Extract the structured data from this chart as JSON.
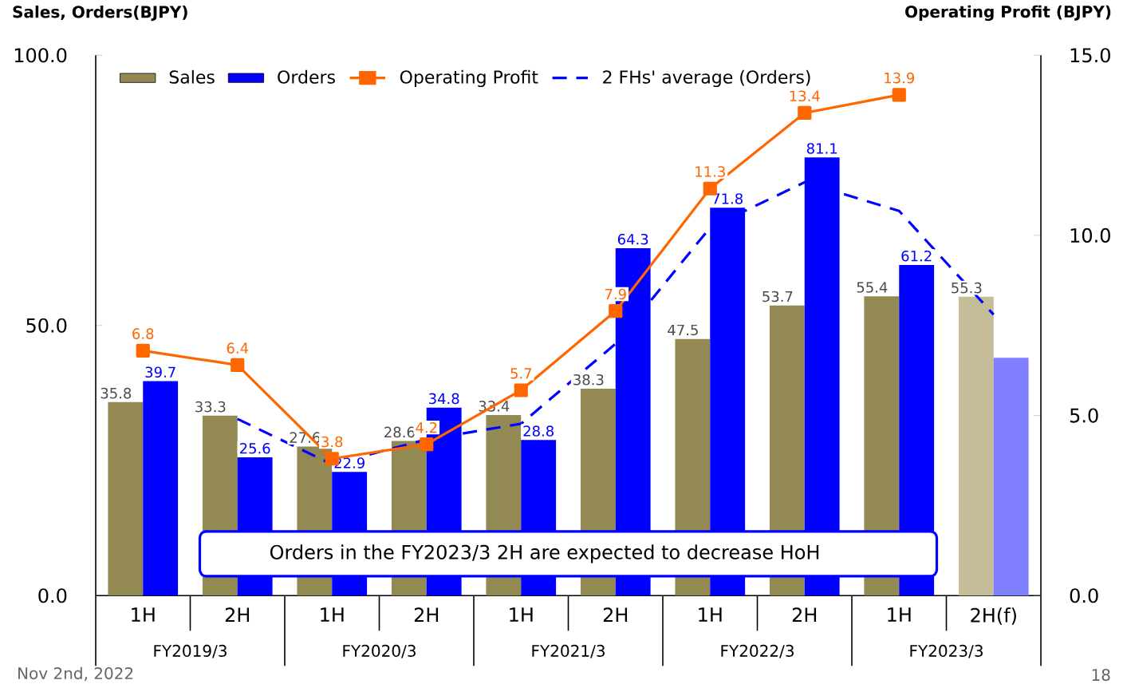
{
  "chart_data": {
    "type": "bar",
    "ylabel": "Sales, Orders(BJPY)",
    "y2label": "Operating Profit (BJPY)",
    "categories": [
      "1H",
      "2H",
      "1H",
      "2H",
      "1H",
      "2H",
      "1H",
      "2H",
      "1H",
      "2H(f)"
    ],
    "ylim": [
      0,
      100
    ],
    "yticks": [
      {
        "value": 0,
        "label": "0.0"
      },
      {
        "value": 50,
        "label": "50.0"
      },
      {
        "value": 100,
        "label": "100.0"
      }
    ],
    "y2lim": [
      0,
      15
    ],
    "y2ticks": [
      {
        "value": 0,
        "label": "0.0"
      },
      {
        "value": 5,
        "label": "5.0"
      },
      {
        "value": 10,
        "label": "10.0"
      },
      {
        "value": 15,
        "label": "15.0"
      }
    ],
    "legend": "top left",
    "series": [
      {
        "name": "Sales",
        "type": "bar",
        "color": "#938953",
        "colors": [
          "#938953",
          "#938953",
          "#938953",
          "#938953",
          "#938953",
          "#938953",
          "#938953",
          "#938953",
          "#938953",
          "#c4bd97"
        ],
        "values": [
          35.8,
          33.3,
          27.6,
          28.6,
          33.4,
          38.3,
          47.5,
          53.7,
          55.4,
          55.3
        ],
        "value_labels": [
          "35.8",
          "33.3",
          "27.6",
          "28.6",
          "33.4",
          "38.3",
          "47.5",
          "53.7",
          "55.4",
          "55.3"
        ]
      },
      {
        "name": "Orders",
        "type": "bar",
        "color": "#0000ff",
        "colors": [
          "#0000ff",
          "#0000ff",
          "#0000ff",
          "#0000ff",
          "#0000ff",
          "#0000ff",
          "#0000ff",
          "#0000ff",
          "#0000ff",
          "#7f7fff"
        ],
        "values": [
          39.7,
          25.6,
          22.9,
          34.8,
          28.8,
          64.3,
          71.8,
          81.1,
          61.2,
          44
        ],
        "value_labels": [
          "39.7",
          "25.6",
          "22.9",
          "34.8",
          "28.8",
          "64.3",
          "71.8",
          "81.1",
          "61.2",
          null
        ]
      },
      {
        "name": "Operating Profit",
        "type": "line",
        "axis": "y2",
        "color": "#ff6600",
        "marker": "square",
        "line_style": "solid",
        "values": [
          6.8,
          6.4,
          3.8,
          4.2,
          5.7,
          7.9,
          11.3,
          13.4,
          13.9,
          null
        ],
        "value_labels": [
          "6.8",
          "6.4",
          "3.8",
          "4.2",
          "5.7",
          "7.9",
          "11.3",
          "13.4",
          "13.9",
          null
        ]
      },
      {
        "name": "2 FHs' average (Orders)",
        "type": "line",
        "color": "#0000ff",
        "marker": "none",
        "line_style": "dashed",
        "values": [
          null,
          32.7,
          24.3,
          28.9,
          31.8,
          46.6,
          68.1,
          76.5,
          71.2,
          52
        ]
      }
    ],
    "annotations": [
      "Orders in the FY2023/3 2H are expected to decrease HoH",
      "FY2019/3",
      "FY2020/3",
      "FY2021/3",
      "FY2022/3",
      "FY2023/3",
      "Nov 2nd, 2022",
      "18"
    ]
  }
}
